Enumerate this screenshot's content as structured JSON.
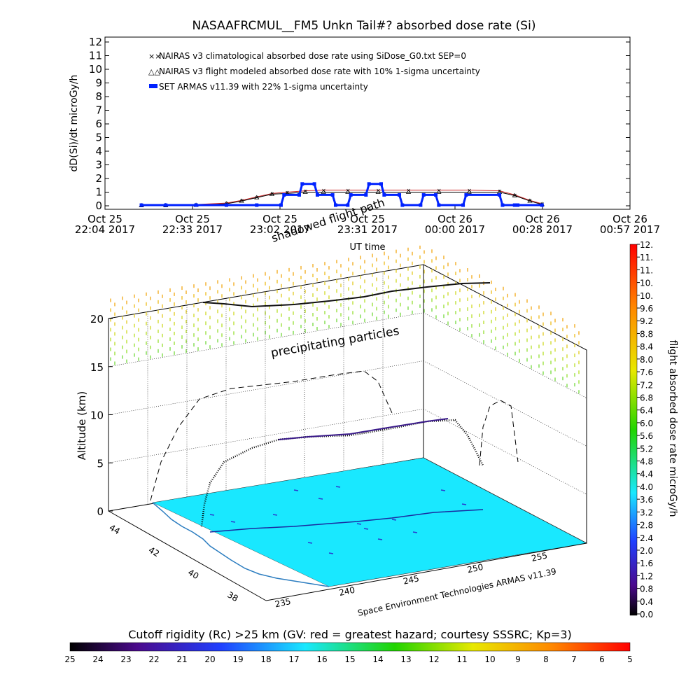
{
  "chart_data": [
    {
      "type": "line",
      "title": "NASAAFRCMUL__FM5 Unkn Tail#? absorbed dose rate (Si)",
      "ylabel": "dD(Si)/dt microGy/h",
      "xlabel": "UT time",
      "ylim": [
        0,
        12
      ],
      "yticks": [
        "0",
        "1",
        "2",
        "3",
        "4",
        "5",
        "6",
        "7",
        "8",
        "9",
        "10",
        "11",
        "12"
      ],
      "xticks": [
        {
          "top": "Oct 25",
          "bottom": "22:04 2017"
        },
        {
          "top": "Oct 25",
          "bottom": "22:33 2017"
        },
        {
          "top": "Oct 25",
          "bottom": "23:02 2017"
        },
        {
          "top": "Oct 25",
          "bottom": "23:31 2017"
        },
        {
          "top": "Oct 26",
          "bottom": "00:00 2017"
        },
        {
          "top": "Oct 26",
          "bottom": "00:28 2017"
        },
        {
          "top": "Oct 26",
          "bottom": "00:57 2017"
        }
      ],
      "xlim_minutes": [
        0,
        173
      ],
      "legend": [
        {
          "label": "NAIRAS v3 climatological absorbed dose rate using SiDose_G0.txt SEP=0",
          "marker": "x",
          "color": "#cc2222"
        },
        {
          "label": "NAIRAS v3 flight modeled absorbed dose rate with 10% 1-sigma uncertainty",
          "marker": "triangle",
          "color": "#000000"
        },
        {
          "label": "SET ARMAS v11.39 with 22% 1-sigma uncertainty",
          "marker": "square",
          "color": "#0022ff"
        }
      ],
      "series": [
        {
          "name": "NAIRAS v3 climatological absorbed dose rate using SiDose_G0.txt SEP=0",
          "x": [
            12,
            20,
            30,
            40,
            45,
            50,
            55,
            60,
            66,
            72,
            80,
            90,
            100,
            110,
            120,
            130,
            135,
            140,
            144
          ],
          "y": [
            0.05,
            0.05,
            0.1,
            0.2,
            0.4,
            0.65,
            0.9,
            1.0,
            1.1,
            1.15,
            1.15,
            1.15,
            1.15,
            1.15,
            1.15,
            1.1,
            0.8,
            0.4,
            0.15
          ]
        },
        {
          "name": "NAIRAS v3 flight modeled absorbed dose rate with 10% 1-sigma uncertainty",
          "x": [
            12,
            20,
            30,
            40,
            45,
            50,
            55,
            60,
            66,
            72,
            80,
            90,
            100,
            110,
            120,
            130,
            135,
            140,
            144
          ],
          "y": [
            0.02,
            0.02,
            0.05,
            0.15,
            0.35,
            0.6,
            0.85,
            0.9,
            1.0,
            1.0,
            1.0,
            1.0,
            1.0,
            1.0,
            1.0,
            1.0,
            0.75,
            0.35,
            0.1
          ]
        },
        {
          "name": "SET ARMAS v11.39 with 22% 1-sigma uncertainty",
          "x": [
            12,
            20,
            30,
            40,
            50,
            58,
            59,
            64,
            65,
            69,
            70,
            75,
            76,
            80,
            81,
            86,
            87,
            91,
            92,
            97,
            98,
            104,
            105,
            109,
            110,
            118,
            119,
            130,
            131,
            135,
            136,
            144
          ],
          "y": [
            0.05,
            0.05,
            0.05,
            0.05,
            0.05,
            0.05,
            0.8,
            0.8,
            1.6,
            1.6,
            0.8,
            0.8,
            0.05,
            0.05,
            0.8,
            0.8,
            1.6,
            1.6,
            0.8,
            0.8,
            0.05,
            0.05,
            0.8,
            0.8,
            0.05,
            0.05,
            0.8,
            0.8,
            0.05,
            0.05,
            0.05,
            0.05
          ]
        }
      ]
    },
    {
      "type": "surface3d",
      "zlabel": "Altitude (km)",
      "zticks": [
        "0",
        "5",
        "10",
        "15",
        "20"
      ],
      "lon_ticks": [
        "235",
        "240",
        "245",
        "250",
        "255"
      ],
      "lat_ticks": [
        "38",
        "40",
        "42",
        "44"
      ],
      "annotations": [
        "precipitating particles",
        "shadowed flight path"
      ],
      "credit": "Space Environment Technologies ARMAS v11.39",
      "flight_path_altitude_km": [
        0,
        2,
        4,
        6,
        7.5,
        8.2,
        8.3,
        8.5,
        8.9,
        9.1,
        9.3,
        9.5,
        9.3,
        7.5,
        4,
        1
      ]
    },
    {
      "type": "colorbar",
      "label": "flight absorbed dose rate microGy/h",
      "ticks": [
        "0.0",
        "0.4",
        "0.8",
        "1.2",
        "1.6",
        "2.0",
        "2.4",
        "2.8",
        "3.2",
        "3.6",
        "4.0",
        "4.4",
        "4.8",
        "5.2",
        "5.6",
        "6.0",
        "6.4",
        "6.8",
        "7.2",
        "7.6",
        "8.0",
        "8.4",
        "8.8",
        "9.2",
        "9.6",
        "10.",
        "10.",
        "11.",
        "11.",
        "12."
      ],
      "range": [
        0,
        12
      ]
    },
    {
      "type": "colorbar",
      "label": "Cutoff rigidity (Rc) >25 km (GV: red = greatest hazard; courtesy SSSRC; Kp=3)",
      "ticks": [
        "25",
        "24",
        "23",
        "22",
        "21",
        "20",
        "19",
        "18",
        "17",
        "16",
        "15",
        "14",
        "13",
        "12",
        "11",
        "10",
        "9",
        "8",
        "7",
        "6",
        "5"
      ],
      "range": [
        25,
        5
      ]
    }
  ]
}
